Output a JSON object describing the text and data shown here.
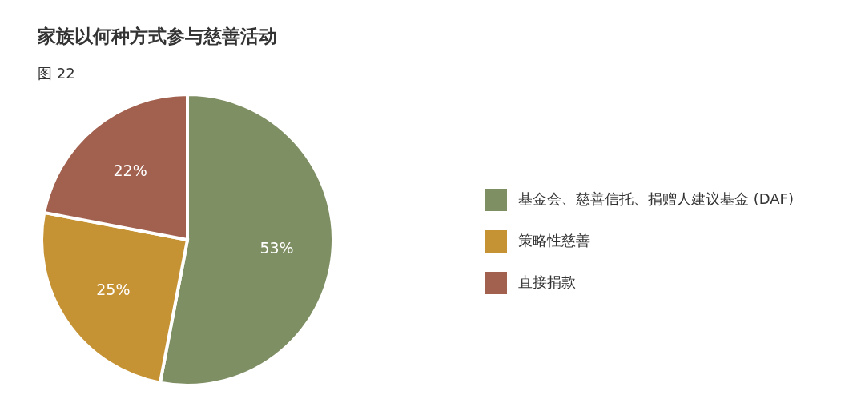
{
  "chart_data": {
    "type": "pie",
    "title": "家族以何种方式参与慈善活动",
    "subtitle": "图 22",
    "categories": [
      "基金会、慈善信托、捐赠人建议基金 (DAF)",
      "策略性慈善",
      "直接捐款"
    ],
    "values": [
      53,
      25,
      22
    ],
    "colors": [
      "#7f8f64",
      "#c69334",
      "#a2614f"
    ],
    "value_labels": [
      "53%",
      "25%",
      "22%"
    ],
    "legend": "right"
  }
}
